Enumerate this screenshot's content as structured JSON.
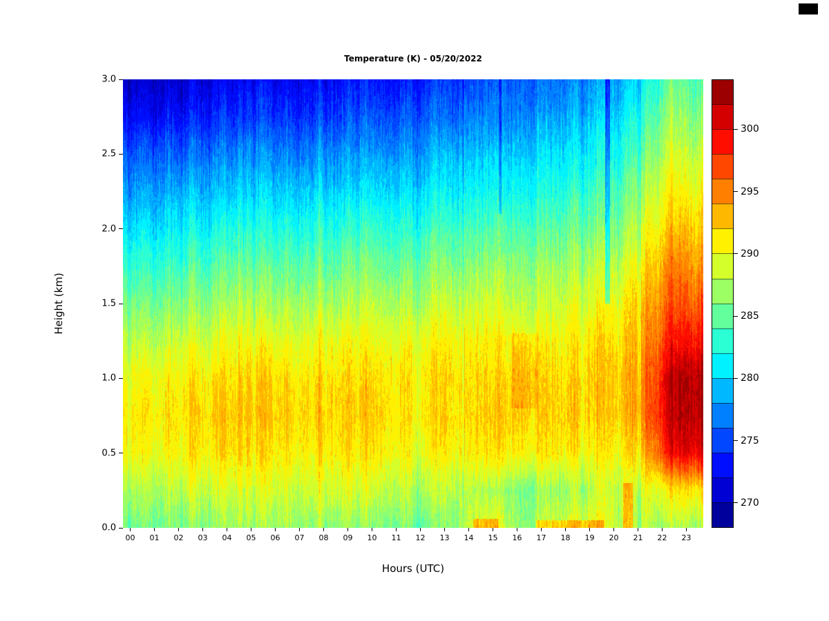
{
  "chart_data": {
    "type": "heatmap",
    "title": "Temperature (K) - 05/20/2022",
    "xlabel": "Hours (UTC)",
    "ylabel": "Height (km)",
    "x_tick_labels": [
      "00",
      "01",
      "02",
      "03",
      "04",
      "05",
      "06",
      "07",
      "08",
      "09",
      "10",
      "11",
      "12",
      "13",
      "14",
      "15",
      "16",
      "17",
      "18",
      "19",
      "20",
      "21",
      "22",
      "23"
    ],
    "y_tick_values": [
      0.0,
      0.5,
      1.0,
      1.5,
      2.0,
      2.5,
      3.0
    ],
    "y_tick_labels": [
      "0.0",
      "0.5",
      "1.0",
      "1.5",
      "2.0",
      "2.5",
      "3.0"
    ],
    "x_hours": [
      0,
      1,
      2,
      3,
      4,
      5,
      6,
      7,
      8,
      9,
      10,
      11,
      12,
      13,
      14,
      15,
      16,
      17,
      18,
      19,
      20,
      21,
      22,
      23
    ],
    "y_heights_km": [
      0.0,
      0.25,
      0.5,
      0.75,
      1.0,
      1.25,
      1.5,
      1.75,
      2.0,
      2.25,
      2.5,
      2.75,
      3.0
    ],
    "rows_order": "bottom_to_top",
    "values_K": [
      [
        286,
        286,
        286,
        286.5,
        286.5,
        286.5,
        287,
        287,
        286.5,
        286.5,
        286,
        286,
        285.5,
        286,
        289,
        290,
        287,
        289,
        289.5,
        290,
        288.5,
        288.5,
        287.5,
        287
      ],
      [
        288,
        288,
        288.5,
        288.5,
        288.5,
        288.5,
        289,
        289,
        289,
        289,
        288.5,
        288.5,
        288,
        288,
        288,
        287.5,
        286.5,
        287.5,
        287.5,
        288,
        288.5,
        289.5,
        291,
        291
      ],
      [
        290.5,
        290.5,
        291,
        291,
        291,
        291,
        291,
        291,
        291,
        291,
        291,
        290.5,
        290.5,
        290.5,
        291,
        291.5,
        291.5,
        291.5,
        291,
        290.5,
        290.5,
        293,
        299,
        300
      ],
      [
        291.5,
        291.5,
        291.5,
        292,
        292,
        292,
        292,
        292,
        292,
        292,
        292,
        291.5,
        291.5,
        291.5,
        292,
        292.5,
        293,
        292.5,
        292.5,
        292,
        292,
        295,
        301,
        302
      ],
      [
        290.5,
        290.5,
        291,
        291,
        291,
        291.5,
        291.5,
        291.5,
        291.5,
        291.5,
        291.5,
        291.5,
        291.5,
        291.5,
        291.5,
        292,
        292.5,
        292.5,
        292,
        292,
        292,
        295,
        301,
        302
      ],
      [
        288.5,
        288.5,
        289,
        289,
        289.5,
        289.5,
        289.5,
        290,
        290,
        290,
        290,
        290,
        290.5,
        290.5,
        290.5,
        291,
        291,
        291,
        291,
        291.5,
        291.5,
        294,
        298.5,
        299
      ],
      [
        286,
        286,
        286.5,
        286.5,
        287,
        287,
        287,
        287.5,
        287.5,
        287.5,
        288,
        288,
        288,
        288.5,
        288.5,
        289,
        289,
        289,
        289.5,
        289.5,
        290,
        293,
        296.5,
        296
      ],
      [
        283.5,
        283.5,
        284,
        284,
        284.5,
        284.5,
        285,
        285,
        285,
        285.5,
        285.5,
        285.5,
        286,
        286,
        286.5,
        287,
        287,
        287.5,
        287.5,
        288,
        288,
        291.5,
        295,
        294
      ],
      [
        281,
        281,
        281.5,
        281.5,
        282,
        282,
        282,
        282.5,
        282.5,
        283,
        283,
        283,
        283.5,
        283.5,
        284,
        284.5,
        285,
        285,
        285.5,
        285.5,
        286,
        289.5,
        292.5,
        292
      ],
      [
        278.5,
        278.5,
        279,
        279,
        279,
        279.5,
        279.5,
        280,
        280,
        280,
        280.5,
        280.5,
        281,
        281,
        281.5,
        282,
        282.5,
        283,
        283,
        283.5,
        284,
        287.5,
        291,
        290
      ],
      [
        276,
        276,
        276,
        276.5,
        276.5,
        277,
        277,
        277,
        277.5,
        277.5,
        278,
        278,
        278.5,
        279,
        279.5,
        280,
        280.5,
        281,
        281,
        281.5,
        282,
        285.5,
        289,
        288
      ],
      [
        273,
        273,
        273,
        273.5,
        273.5,
        274,
        274,
        274.5,
        274.5,
        275,
        275,
        275.5,
        276,
        276,
        277,
        277.5,
        278,
        278.5,
        279,
        279.5,
        280,
        283.5,
        287,
        286
      ],
      [
        271,
        271,
        271,
        271.5,
        271.5,
        272,
        272,
        272.5,
        272.5,
        273,
        273,
        273.5,
        274,
        274,
        275,
        276,
        276.5,
        277,
        277,
        277.5,
        278,
        281.5,
        285,
        284
      ]
    ],
    "value_range_K": [
      268,
      304
    ],
    "band_step_K": 2,
    "palette": [
      "#00009C",
      "#0000D4",
      "#000EFF",
      "#0047FF",
      "#0080FF",
      "#00B8FF",
      "#00F1FF",
      "#2BFFD4",
      "#63FF9C",
      "#9CFF63",
      "#D4FF2B",
      "#FFF100",
      "#FFB800",
      "#FF8000",
      "#FF4700",
      "#FF0E00",
      "#D40000",
      "#9C0000"
    ],
    "colorbar_tick_values": [
      270,
      275,
      280,
      285,
      290,
      295,
      300
    ],
    "legend_position": "right",
    "grid": "off",
    "features": [
      {
        "hour": 15.0,
        "halfwidth": 0.5,
        "h_from": 0.0,
        "h_to": 0.06,
        "delta": 4
      },
      {
        "hour": 18.5,
        "halfwidth": 1.4,
        "h_from": 0.0,
        "h_to": 0.05,
        "delta": 3.5
      },
      {
        "hour": 20.9,
        "halfwidth": 0.2,
        "h_from": 0.0,
        "h_to": 0.3,
        "delta": 4
      },
      {
        "hour": 15.6,
        "halfwidth": 0.06,
        "h_from": 2.1,
        "h_to": 3.0,
        "delta": -4
      },
      {
        "hour": 20.05,
        "halfwidth": 0.1,
        "h_from": 1.5,
        "h_to": 3.0,
        "delta": -5
      },
      {
        "hour": 16.6,
        "halfwidth": 0.55,
        "h_from": 0.8,
        "h_to": 1.3,
        "delta": 1.5
      },
      {
        "hour": 21.35,
        "halfwidth": 0.07,
        "h_from": 0.0,
        "h_to": 3.0,
        "delta": -2
      }
    ]
  }
}
